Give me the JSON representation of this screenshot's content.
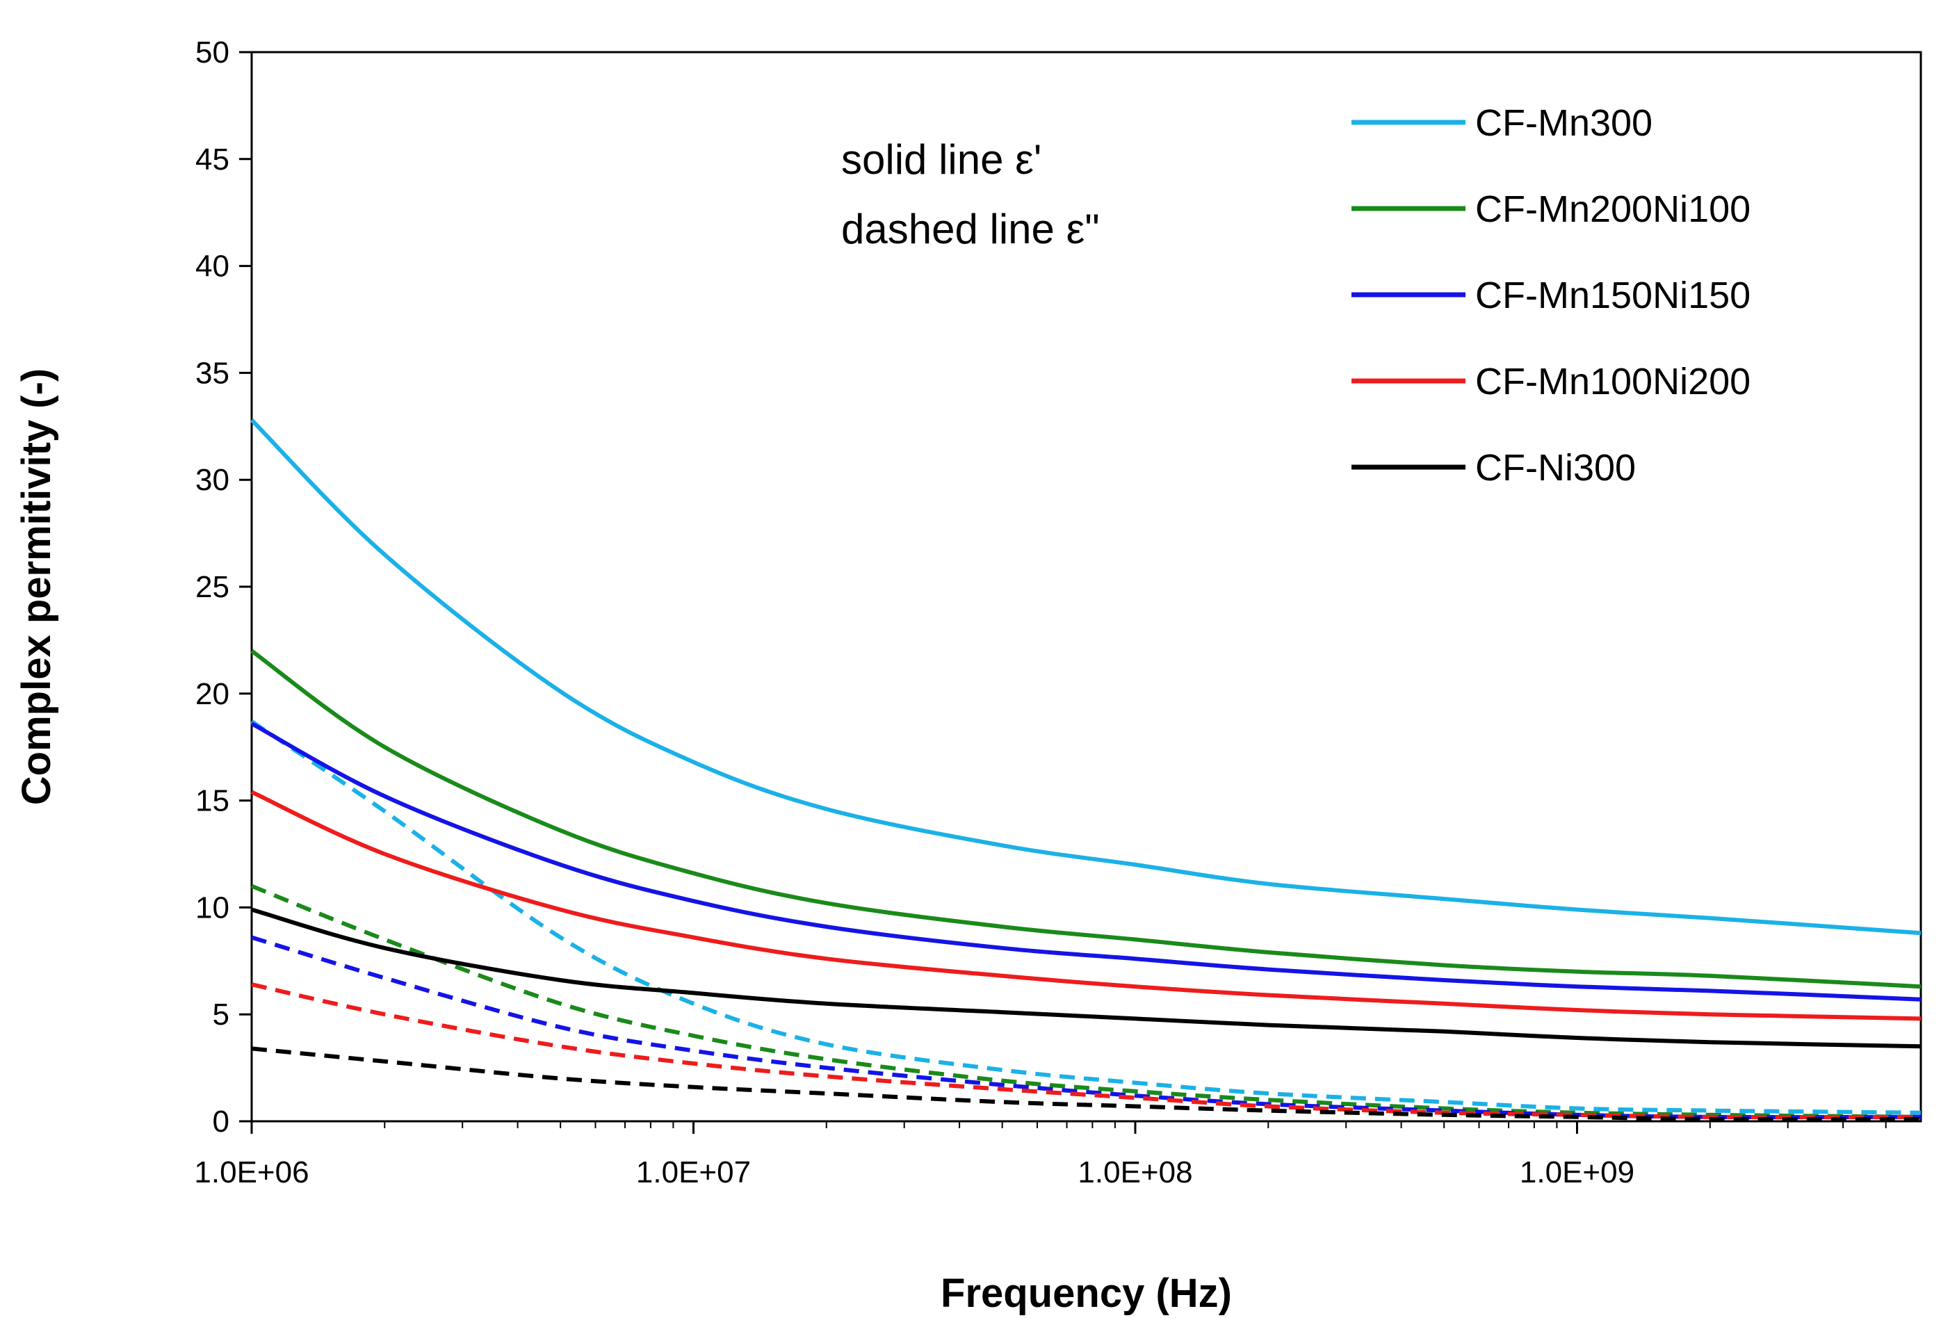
{
  "chart_data": {
    "type": "line",
    "title": "",
    "xlabel": "Frequency (Hz)",
    "ylabel": "Complex permitivity (-)",
    "xscale": "log",
    "xlim": [
      1000000,
      6000000000
    ],
    "ylim": [
      0,
      50
    ],
    "xticks": [
      1000000,
      10000000,
      100000000,
      1000000000
    ],
    "xtick_labels": [
      "1.0E+06",
      "1.0E+07",
      "1.0E+08",
      "1.0E+09"
    ],
    "yticks": [
      0,
      5,
      10,
      15,
      20,
      25,
      30,
      35,
      40,
      45,
      50
    ],
    "ytick_labels": [
      "0",
      "5",
      "10",
      "15",
      "20",
      "25",
      "30",
      "35",
      "40",
      "45",
      "50"
    ],
    "grid": false,
    "legend_position": "top-right",
    "annotation": [
      "solid line ε'",
      "dashed line ε\""
    ],
    "x": [
      1000000,
      2000000,
      5000000,
      10000000,
      20000000,
      50000000,
      100000000,
      200000000,
      500000000,
      1000000000,
      2000000000,
      6000000000
    ],
    "series": [
      {
        "name": "CF-Mn300",
        "color": "#1bb1e7",
        "style": "solid",
        "values": [
          32.8,
          26.5,
          20.1,
          16.8,
          14.6,
          12.9,
          12.0,
          11.1,
          10.4,
          9.9,
          9.5,
          8.8
        ]
      },
      {
        "name": "CF-Mn200Ni100",
        "color": "#1a8a1a",
        "style": "solid",
        "values": [
          22.0,
          17.5,
          13.6,
          11.6,
          10.2,
          9.1,
          8.5,
          7.9,
          7.3,
          7.0,
          6.8,
          6.3
        ]
      },
      {
        "name": "CF-Mn150Ni150",
        "color": "#1414e6",
        "style": "solid",
        "values": [
          18.6,
          15.2,
          12.0,
          10.3,
          9.1,
          8.1,
          7.6,
          7.1,
          6.6,
          6.3,
          6.1,
          5.7
        ]
      },
      {
        "name": "CF-Mn100Ni200",
        "color": "#ee1c1c",
        "style": "solid",
        "values": [
          15.4,
          12.5,
          9.9,
          8.6,
          7.6,
          6.8,
          6.3,
          5.9,
          5.5,
          5.2,
          5.0,
          4.8
        ]
      },
      {
        "name": "CF-Ni300",
        "color": "#000000",
        "style": "solid",
        "values": [
          9.9,
          8.1,
          6.6,
          6.0,
          5.5,
          5.1,
          4.8,
          4.5,
          4.2,
          3.9,
          3.7,
          3.5
        ]
      },
      {
        "name": "CF-Mn300",
        "color": "#1bb1e7",
        "style": "dashed",
        "values": [
          18.7,
          14.5,
          8.6,
          5.5,
          3.6,
          2.4,
          1.8,
          1.3,
          0.9,
          0.6,
          0.5,
          0.4
        ]
      },
      {
        "name": "CF-Mn200Ni100",
        "color": "#1a8a1a",
        "style": "dashed",
        "values": [
          11.0,
          8.5,
          5.5,
          4.0,
          2.9,
          1.9,
          1.4,
          1.0,
          0.6,
          0.4,
          0.3,
          0.2
        ]
      },
      {
        "name": "CF-Mn150Ni150",
        "color": "#1414e6",
        "style": "dashed",
        "values": [
          8.6,
          6.7,
          4.4,
          3.3,
          2.5,
          1.7,
          1.2,
          0.8,
          0.5,
          0.3,
          0.2,
          0.2
        ]
      },
      {
        "name": "CF-Mn100Ni200",
        "color": "#ee1c1c",
        "style": "dashed",
        "values": [
          6.4,
          5.0,
          3.5,
          2.7,
          2.1,
          1.5,
          1.1,
          0.7,
          0.4,
          0.3,
          0.2,
          0.2
        ]
      },
      {
        "name": "CF-Ni300",
        "color": "#000000",
        "style": "dashed",
        "values": [
          3.4,
          2.8,
          2.0,
          1.6,
          1.3,
          0.9,
          0.7,
          0.5,
          0.3,
          0.2,
          0.1,
          0.1
        ]
      }
    ]
  }
}
